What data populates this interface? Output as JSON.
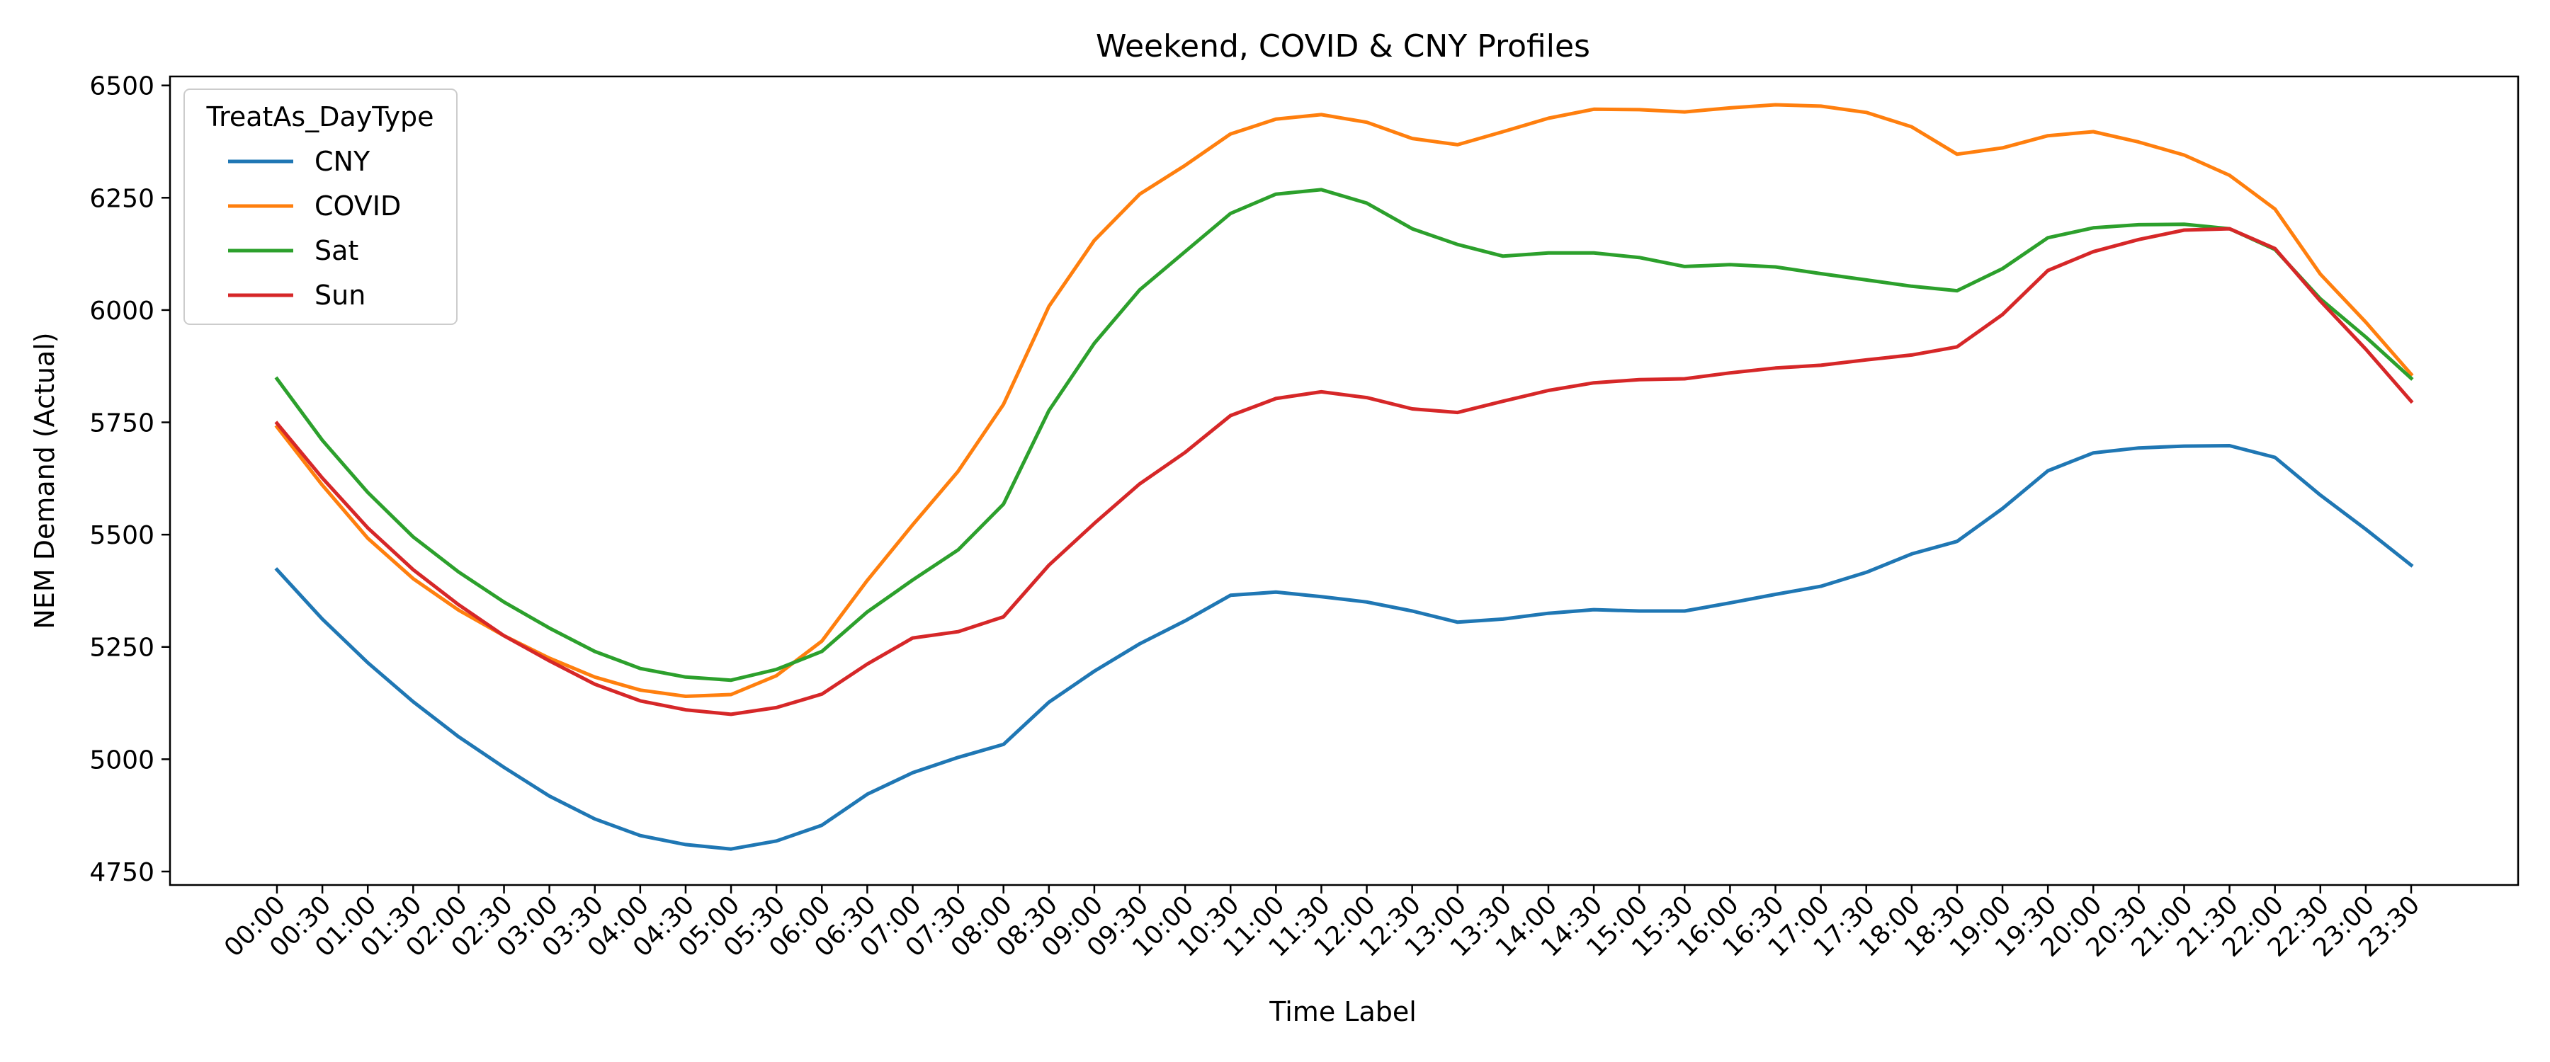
{
  "chart_data": {
    "type": "line",
    "title": "Weekend, COVID & CNY Profiles",
    "xlabel": "Time Label",
    "ylabel": "NEM Demand (Actual)",
    "ylim": [
      4720,
      6520
    ],
    "yticks": [
      4750,
      5000,
      5250,
      5500,
      5750,
      6000,
      6250,
      6500
    ],
    "grid": false,
    "legend_title": "TreatAs_DayType",
    "legend_position": "top-left",
    "x": [
      "00:00",
      "00:30",
      "01:00",
      "01:30",
      "02:00",
      "02:30",
      "03:00",
      "03:30",
      "04:00",
      "04:30",
      "05:00",
      "05:30",
      "06:00",
      "06:30",
      "07:00",
      "07:30",
      "08:00",
      "08:30",
      "09:00",
      "09:30",
      "10:00",
      "10:30",
      "11:00",
      "11:30",
      "12:00",
      "12:30",
      "13:00",
      "13:30",
      "14:00",
      "14:30",
      "15:00",
      "15:30",
      "16:00",
      "16:30",
      "17:00",
      "17:30",
      "18:00",
      "18:30",
      "19:00",
      "19:30",
      "20:00",
      "20:30",
      "21:00",
      "21:30",
      "22:00",
      "22:30",
      "23:00",
      "23:30"
    ],
    "series": [
      {
        "name": "CNY",
        "color": "#1f77b4",
        "values": [
          5422,
          5312,
          5215,
          5128,
          5050,
          4982,
          4918,
          4867,
          4830,
          4810,
          4800,
          4818,
          4853,
          4922,
          4970,
          5004,
          5033,
          5127,
          5196,
          5257,
          5308,
          5365,
          5372,
          5362,
          5350,
          5330,
          5305,
          5312,
          5325,
          5333,
          5330,
          5330,
          5348,
          5367,
          5385,
          5416,
          5457,
          5485,
          5558,
          5642,
          5682,
          5693,
          5697,
          5698,
          5672,
          5588,
          5512,
          5432
        ]
      },
      {
        "name": "COVID",
        "color": "#ff7f0e",
        "values": [
          5740,
          5610,
          5492,
          5402,
          5332,
          5275,
          5225,
          5183,
          5154,
          5140,
          5144,
          5186,
          5263,
          5398,
          5522,
          5641,
          5790,
          6008,
          6155,
          6258,
          6322,
          6392,
          6425,
          6435,
          6418,
          6382,
          6368,
          6397,
          6427,
          6447,
          6446,
          6441,
          6450,
          6457,
          6454,
          6440,
          6408,
          6347,
          6361,
          6388,
          6397,
          6374,
          6345,
          6300,
          6225,
          6080,
          5973,
          5857
        ]
      },
      {
        "name": "Sat",
        "color": "#2ca02c",
        "values": [
          5847,
          5710,
          5594,
          5495,
          5417,
          5350,
          5292,
          5240,
          5202,
          5183,
          5176,
          5200,
          5240,
          5328,
          5399,
          5466,
          5568,
          5776,
          5926,
          6045,
          6130,
          6215,
          6258,
          6268,
          6238,
          6181,
          6146,
          6120,
          6127,
          6127,
          6117,
          6097,
          6101,
          6096,
          6081,
          6067,
          6053,
          6043,
          6092,
          6161,
          6183,
          6190,
          6191,
          6181,
          6135,
          6025,
          5940,
          5848
        ]
      },
      {
        "name": "Sun",
        "color": "#d62728",
        "values": [
          5748,
          5626,
          5515,
          5422,
          5344,
          5275,
          5219,
          5167,
          5130,
          5110,
          5100,
          5115,
          5145,
          5212,
          5270,
          5284,
          5317,
          5432,
          5525,
          5613,
          5683,
          5765,
          5803,
          5818,
          5805,
          5780,
          5772,
          5797,
          5821,
          5838,
          5845,
          5847,
          5860,
          5871,
          5877,
          5889,
          5900,
          5918,
          5990,
          6088,
          6130,
          6157,
          6178,
          6181,
          6137,
          6020,
          5913,
          5797
        ]
      }
    ]
  }
}
